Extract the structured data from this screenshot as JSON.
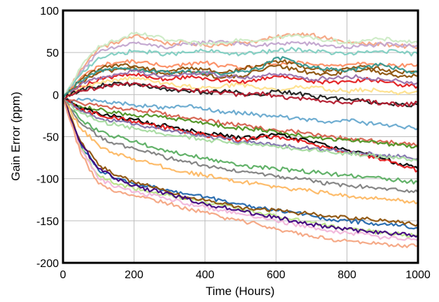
{
  "chart_data": {
    "type": "line",
    "title": "",
    "xlabel": "Time (Hours)",
    "ylabel": "Gain Error (ppm)",
    "xlim": [
      0,
      1000
    ],
    "ylim": [
      -200,
      100
    ],
    "x_ticks": [
      0,
      200,
      400,
      600,
      800,
      1000
    ],
    "y_ticks": [
      100,
      50,
      0,
      -50,
      -100,
      -150,
      -200
    ],
    "grid": true,
    "legend": "none",
    "x": [
      0,
      50,
      100,
      150,
      200,
      250,
      300,
      350,
      400,
      450,
      500,
      550,
      600,
      650,
      700,
      750,
      800,
      850,
      900,
      950,
      1000
    ],
    "series": [
      {
        "color": "#f4a582",
        "values": [
          -5,
          30,
          55,
          62,
          70,
          66,
          60,
          62,
          58,
          60,
          62,
          64,
          68,
          72,
          72,
          66,
          62,
          60,
          60,
          58,
          56
        ]
      },
      {
        "color": "#c2a5cf",
        "values": [
          -5,
          28,
          50,
          56,
          62,
          58,
          56,
          60,
          62,
          64,
          60,
          58,
          60,
          62,
          60,
          58,
          56,
          58,
          60,
          58,
          58
        ]
      },
      {
        "color": "#ccebc5",
        "values": [
          -5,
          32,
          58,
          64,
          72,
          70,
          64,
          62,
          60,
          62,
          66,
          64,
          68,
          70,
          68,
          64,
          62,
          64,
          66,
          64,
          62
        ]
      },
      {
        "color": "#80cdc1",
        "values": [
          -5,
          24,
          44,
          48,
          52,
          50,
          48,
          50,
          52,
          50,
          48,
          50,
          52,
          54,
          52,
          50,
          48,
          50,
          52,
          50,
          48
        ]
      },
      {
        "color": "#fc8d62",
        "values": [
          -5,
          20,
          34,
          38,
          40,
          36,
          34,
          36,
          38,
          34,
          32,
          34,
          36,
          38,
          36,
          34,
          36,
          38,
          36,
          34,
          36
        ]
      },
      {
        "color": "#8c510a",
        "values": [
          -5,
          18,
          30,
          36,
          34,
          30,
          28,
          32,
          30,
          26,
          30,
          34,
          40,
          38,
          30,
          28,
          32,
          34,
          30,
          26,
          28
        ]
      },
      {
        "color": "#8c510a",
        "values": [
          -5,
          14,
          26,
          30,
          32,
          26,
          24,
          28,
          24,
          20,
          22,
          28,
          34,
          30,
          26,
          24,
          28,
          30,
          26,
          22,
          22
        ]
      },
      {
        "color": "#35978f",
        "values": [
          -5,
          16,
          28,
          32,
          30,
          28,
          26,
          28,
          26,
          24,
          28,
          30,
          44,
          40,
          32,
          30,
          28,
          32,
          36,
          30,
          26
        ]
      },
      {
        "color": "#e31a1c",
        "values": [
          -5,
          10,
          18,
          22,
          24,
          20,
          18,
          22,
          20,
          16,
          14,
          18,
          22,
          20,
          16,
          14,
          16,
          18,
          16,
          12,
          10
        ]
      },
      {
        "color": "#9970ab",
        "values": [
          -5,
          12,
          20,
          24,
          28,
          24,
          22,
          24,
          26,
          22,
          20,
          22,
          24,
          22,
          18,
          20,
          22,
          20,
          18,
          16,
          14
        ]
      },
      {
        "color": "#fee08b",
        "values": [
          -5,
          8,
          14,
          18,
          20,
          16,
          12,
          10,
          8,
          10,
          12,
          8,
          6,
          8,
          10,
          6,
          4,
          6,
          4,
          2,
          4
        ]
      },
      {
        "color": "#1a1a1a",
        "values": [
          -5,
          6,
          10,
          14,
          12,
          8,
          6,
          4,
          2,
          4,
          2,
          0,
          4,
          2,
          -2,
          -4,
          -6,
          -8,
          -10,
          -12,
          -12
        ]
      },
      {
        "color": "#b2182b",
        "values": [
          -5,
          4,
          8,
          12,
          14,
          10,
          8,
          6,
          4,
          2,
          0,
          2,
          -2,
          -4,
          -6,
          -8,
          -10,
          -8,
          -10,
          -12,
          -10
        ]
      },
      {
        "color": "#67a9cf",
        "values": [
          -5,
          -6,
          -8,
          -10,
          -12,
          -14,
          -16,
          -14,
          -18,
          -20,
          -22,
          -24,
          -26,
          -28,
          -30,
          -32,
          -30,
          -34,
          -36,
          -38,
          -40
        ]
      },
      {
        "color": "#d6604d",
        "values": [
          -5,
          -10,
          -14,
          -16,
          -18,
          -20,
          -24,
          -28,
          -30,
          -34,
          -36,
          -40,
          -42,
          -44,
          -46,
          -50,
          -52,
          -54,
          -56,
          -58,
          -60
        ]
      },
      {
        "color": "#4d9221",
        "values": [
          -5,
          -14,
          -18,
          -22,
          -24,
          -26,
          -28,
          -30,
          -34,
          -38,
          -40,
          -42,
          -44,
          -48,
          -50,
          -52,
          -54,
          -56,
          -58,
          -60,
          -62
        ]
      },
      {
        "color": "#000000",
        "values": [
          -5,
          -16,
          -22,
          -26,
          -30,
          -34,
          -38,
          -42,
          -46,
          -48,
          -52,
          -50,
          -48,
          -52,
          -56,
          -62,
          -66,
          -70,
          -76,
          -82,
          -88
        ]
      },
      {
        "color": "#e31a1c",
        "values": [
          -5,
          -18,
          -24,
          -28,
          -32,
          -36,
          -40,
          -44,
          -48,
          -50,
          -54,
          -52,
          -50,
          -54,
          -58,
          -64,
          -68,
          -72,
          -78,
          -84,
          -90
        ]
      },
      {
        "color": "#8073ac",
        "values": [
          -5,
          -20,
          -28,
          -32,
          -36,
          -38,
          -42,
          -46,
          -50,
          -52,
          -56,
          -58,
          -60,
          -62,
          -64,
          -66,
          -68,
          -70,
          -72,
          -74,
          -76
        ]
      },
      {
        "color": "#a6dba0",
        "values": [
          -5,
          -22,
          -32,
          -36,
          -40,
          -44,
          -48,
          -50,
          -54,
          -56,
          -58,
          -60,
          -62,
          -64,
          -66,
          -68,
          -70,
          -72,
          -74,
          -76,
          -78
        ]
      },
      {
        "color": "#5aae61",
        "values": [
          -5,
          -30,
          -44,
          -50,
          -56,
          -62,
          -68,
          -72,
          -76,
          -80,
          -84,
          -86,
          -88,
          -90,
          -92,
          -94,
          -96,
          -98,
          -100,
          -102,
          -104
        ]
      },
      {
        "color": "#7f7f7f",
        "values": [
          -5,
          -34,
          -50,
          -58,
          -64,
          -70,
          -76,
          -80,
          -84,
          -88,
          -92,
          -94,
          -98,
          -100,
          -102,
          -106,
          -108,
          -110,
          -112,
          -114,
          -116
        ]
      },
      {
        "color": "#fdb863",
        "values": [
          -5,
          -40,
          -60,
          -70,
          -76,
          -82,
          -88,
          -92,
          -96,
          -100,
          -104,
          -106,
          -110,
          -112,
          -114,
          -118,
          -120,
          -122,
          -124,
          -126,
          -128
        ]
      },
      {
        "color": "#2166ac",
        "values": [
          -5,
          -60,
          -90,
          -100,
          -106,
          -110,
          -114,
          -118,
          -122,
          -126,
          -130,
          -134,
          -138,
          -140,
          -144,
          -148,
          -150,
          -152,
          -154,
          -156,
          -158
        ]
      },
      {
        "color": "#b8e186",
        "values": [
          -5,
          -64,
          -96,
          -106,
          -112,
          -116,
          -120,
          -124,
          -128,
          -132,
          -136,
          -140,
          -144,
          -148,
          -152,
          -156,
          -160,
          -162,
          -164,
          -166,
          -168
        ]
      },
      {
        "color": "#f1b6da",
        "values": [
          -5,
          -66,
          -100,
          -110,
          -116,
          -120,
          -124,
          -130,
          -134,
          -138,
          -142,
          -146,
          -150,
          -154,
          -158,
          -162,
          -164,
          -166,
          -170,
          -172,
          -174
        ]
      },
      {
        "color": "#8c510a",
        "values": [
          -5,
          -56,
          -84,
          -96,
          -104,
          -110,
          -116,
          -122,
          -126,
          -130,
          -134,
          -136,
          -138,
          -140,
          -142,
          -144,
          -146,
          -148,
          -150,
          -152,
          -154
        ]
      },
      {
        "color": "#3f007d",
        "values": [
          -5,
          -58,
          -88,
          -100,
          -108,
          -114,
          -118,
          -124,
          -130,
          -134,
          -138,
          -142,
          -146,
          -150,
          -154,
          -158,
          -160,
          -162,
          -164,
          -166,
          -168
        ]
      },
      {
        "color": "#f4a582",
        "values": [
          -5,
          -70,
          -106,
          -116,
          -120,
          -124,
          -130,
          -136,
          -140,
          -146,
          -150,
          -154,
          -160,
          -164,
          -168,
          -172,
          -174,
          -176,
          -178,
          -180,
          -180
        ]
      }
    ]
  }
}
